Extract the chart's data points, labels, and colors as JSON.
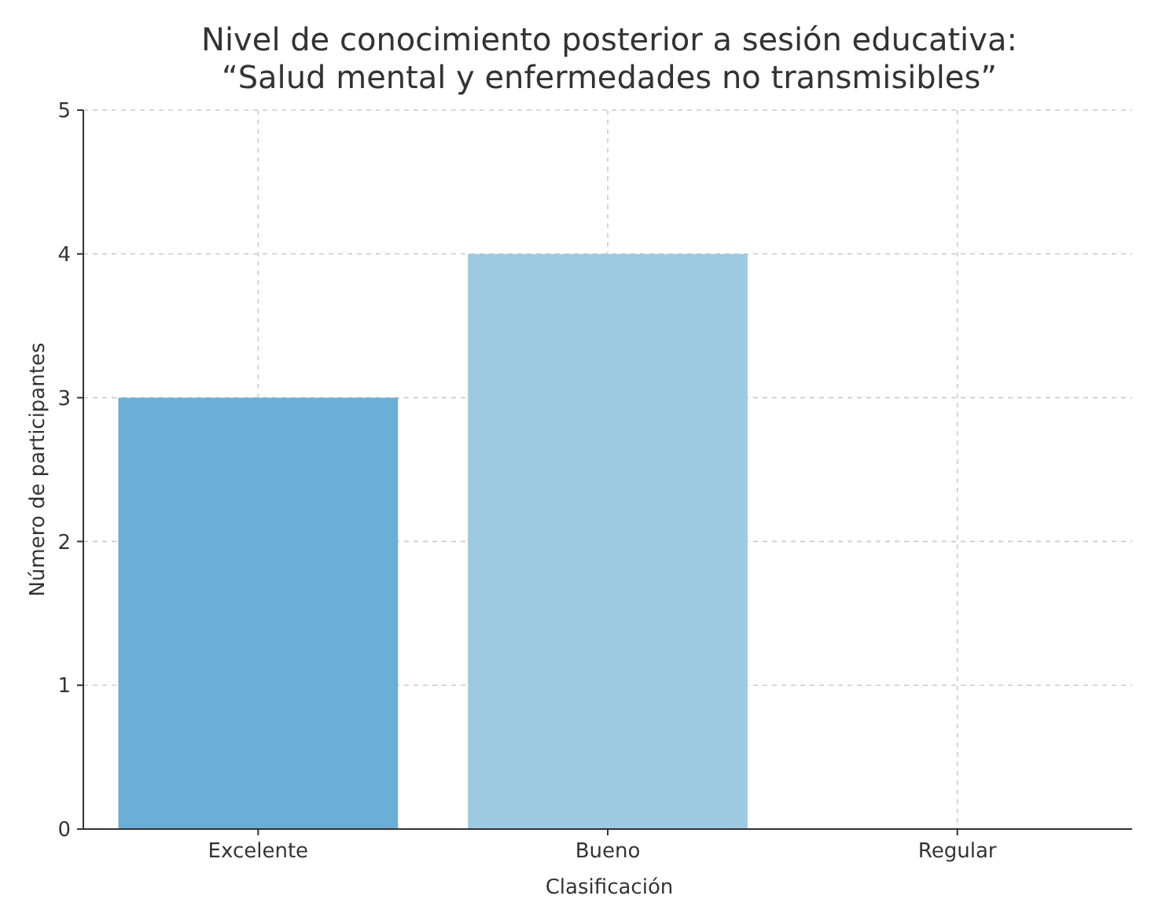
{
  "chart_data": {
    "type": "bar",
    "title": "Nivel de conocimiento posterior a sesión educativa:\n“Salud mental y enfermedades no transmisibles”",
    "xlabel": "Clasificación",
    "ylabel": "Número de participantes",
    "categories": [
      "Excelente",
      "Bueno",
      "Regular"
    ],
    "values": [
      3,
      4,
      0
    ],
    "colors": [
      "#6baed6",
      "#9ecae1",
      "#c6dbef"
    ],
    "ylim": [
      0,
      5
    ],
    "yticks": [
      0,
      1,
      2,
      3,
      4,
      5
    ],
    "grid": true
  }
}
